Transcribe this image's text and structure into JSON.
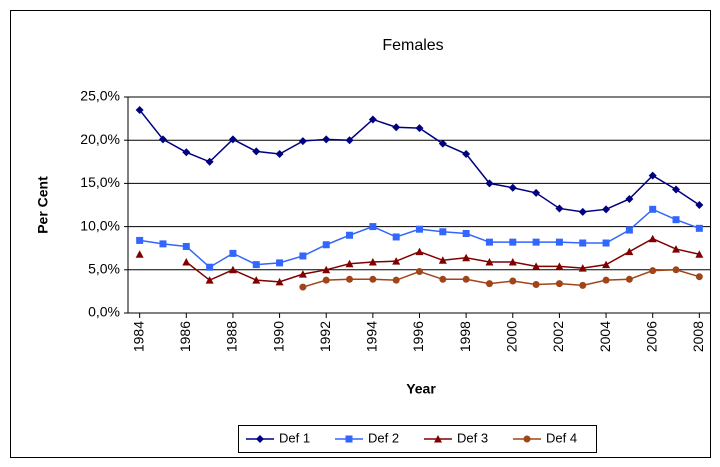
{
  "chart_data": {
    "type": "line",
    "title": "Females",
    "x_label": "Year",
    "y_label": "Per Cent",
    "x": [
      1984,
      1985,
      1986,
      1987,
      1988,
      1989,
      1990,
      1991,
      1992,
      1993,
      1994,
      1995,
      1996,
      1997,
      1998,
      1999,
      2000,
      2001,
      2002,
      2003,
      2004,
      2005,
      2006,
      2007,
      2008
    ],
    "xlim": [
      1983.5,
      2008.5
    ],
    "xticks": [
      1984,
      1986,
      1988,
      1990,
      1992,
      1994,
      1996,
      1998,
      2000,
      2002,
      2004,
      2006,
      2008
    ],
    "ylim": [
      0,
      25
    ],
    "yticks": [
      {
        "value": 0,
        "label": "0,0%"
      },
      {
        "value": 5,
        "label": "5,0%"
      },
      {
        "value": 10,
        "label": "10,0%"
      },
      {
        "value": 15,
        "label": "15,0%"
      },
      {
        "value": 20,
        "label": "20,0%"
      },
      {
        "value": 25,
        "label": "25,0%"
      }
    ],
    "grid": true,
    "legend": "bottom",
    "series": [
      {
        "name": "Def 1",
        "color": "#000080",
        "marker": "diamond",
        "values": [
          23.5,
          20.1,
          18.6,
          17.5,
          20.1,
          18.7,
          18.4,
          19.9,
          20.1,
          20.0,
          22.4,
          21.5,
          21.4,
          19.6,
          18.4,
          15.0,
          14.5,
          13.9,
          12.1,
          11.7,
          12.0,
          13.2,
          15.9,
          14.3,
          12.5
        ]
      },
      {
        "name": "Def 2",
        "color": "#3366ff",
        "marker": "square",
        "values": [
          8.4,
          8.0,
          7.7,
          5.3,
          6.9,
          5.6,
          5.8,
          6.6,
          7.9,
          9.0,
          10.0,
          8.8,
          9.7,
          9.4,
          9.2,
          8.2,
          8.2,
          8.2,
          8.2,
          8.1,
          8.1,
          9.6,
          12.0,
          10.8,
          9.8
        ]
      },
      {
        "name": "Def 3",
        "color": "#800000",
        "marker": "triangle",
        "values": [
          6.8,
          null,
          5.9,
          3.8,
          5.0,
          3.8,
          3.6,
          4.5,
          5.0,
          5.7,
          5.9,
          6.0,
          7.1,
          6.1,
          6.4,
          5.9,
          5.9,
          5.4,
          5.4,
          5.2,
          5.6,
          7.1,
          8.6,
          7.4,
          6.8
        ]
      },
      {
        "name": "Def 4",
        "color": "#a0451a",
        "marker": "circle",
        "values": [
          null,
          null,
          null,
          null,
          null,
          null,
          null,
          3.0,
          3.8,
          3.9,
          3.9,
          3.8,
          4.8,
          3.9,
          3.9,
          3.4,
          3.7,
          3.3,
          3.4,
          3.2,
          3.8,
          3.9,
          4.9,
          5.0,
          4.2
        ]
      }
    ]
  }
}
